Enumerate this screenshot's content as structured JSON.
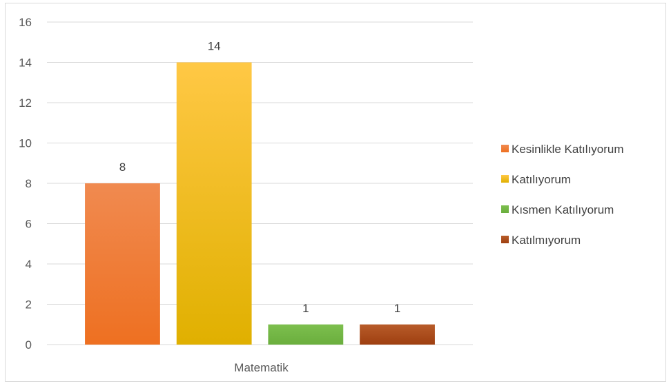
{
  "chart_data": {
    "type": "bar",
    "categories": [
      "Matematik"
    ],
    "series": [
      {
        "name": "Kesinlikle Katılıyorum",
        "values": [
          8
        ],
        "color_top": "#F08A50",
        "color_bottom": "#EE7021"
      },
      {
        "name": "Katılıyorum",
        "values": [
          14
        ],
        "color_top": "#FFC845",
        "color_bottom": "#E0B000"
      },
      {
        "name": "Kısmen Katılıyorum",
        "values": [
          1
        ],
        "color_top": "#7DBF4E",
        "color_bottom": "#6AAE3D"
      },
      {
        "name": "Katılmıyorum",
        "values": [
          1
        ],
        "color_top": "#B85C2A",
        "color_bottom": "#9E3F10"
      }
    ],
    "ylim": [
      0,
      16
    ],
    "yticks": [
      0,
      2,
      4,
      6,
      8,
      10,
      12,
      14,
      16
    ],
    "title": "",
    "xlabel": "",
    "ylabel": "",
    "grid": true,
    "legend_position": "right"
  }
}
